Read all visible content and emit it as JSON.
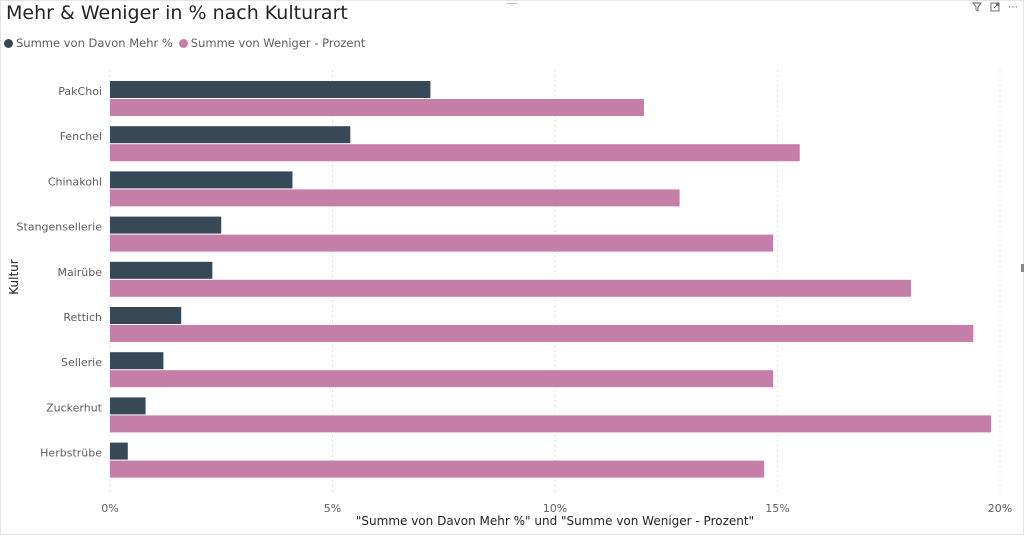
{
  "title": "Mehr & Weniger in % nach Kulturart",
  "legend": {
    "mehr": "Summe von Davon Mehr %",
    "weniger": "Summe von Weniger - Prozent"
  },
  "toolbar": {
    "filter_icon": "filter-icon",
    "focus_icon": "focus-mode-icon",
    "more_icon": "more-options-icon"
  },
  "colors": {
    "mehr": "#374957",
    "weniger": "#c57ea7",
    "grid": "#e1e1e1",
    "tick": "#605e5c"
  },
  "chart_data": {
    "type": "bar",
    "orientation": "horizontal",
    "title": "Mehr & Weniger in % nach Kulturart",
    "xlabel": "\"Summe von Davon Mehr %\" und \"Summe von Weniger - Prozent\"",
    "ylabel": "Kultur",
    "xlim": [
      0,
      20
    ],
    "xticks": [
      0,
      5,
      10,
      15,
      20
    ],
    "xtick_labels": [
      "0%",
      "5%",
      "10%",
      "15%",
      "20%"
    ],
    "grid": true,
    "legend_position": "top-left",
    "categories": [
      "PakChoi",
      "Fenchel",
      "Chinakohl",
      "Stangensellerie",
      "Mairübe",
      "Rettich",
      "Sellerie",
      "Zuckerhut",
      "Herbstrübe"
    ],
    "series": [
      {
        "name": "Summe von Davon Mehr %",
        "values": [
          7.2,
          5.4,
          4.1,
          2.5,
          2.3,
          1.6,
          1.2,
          0.8,
          0.4
        ]
      },
      {
        "name": "Summe von Weniger - Prozent",
        "values": [
          12.0,
          15.5,
          12.8,
          14.9,
          18.0,
          19.4,
          14.9,
          19.8,
          14.7
        ]
      }
    ]
  }
}
